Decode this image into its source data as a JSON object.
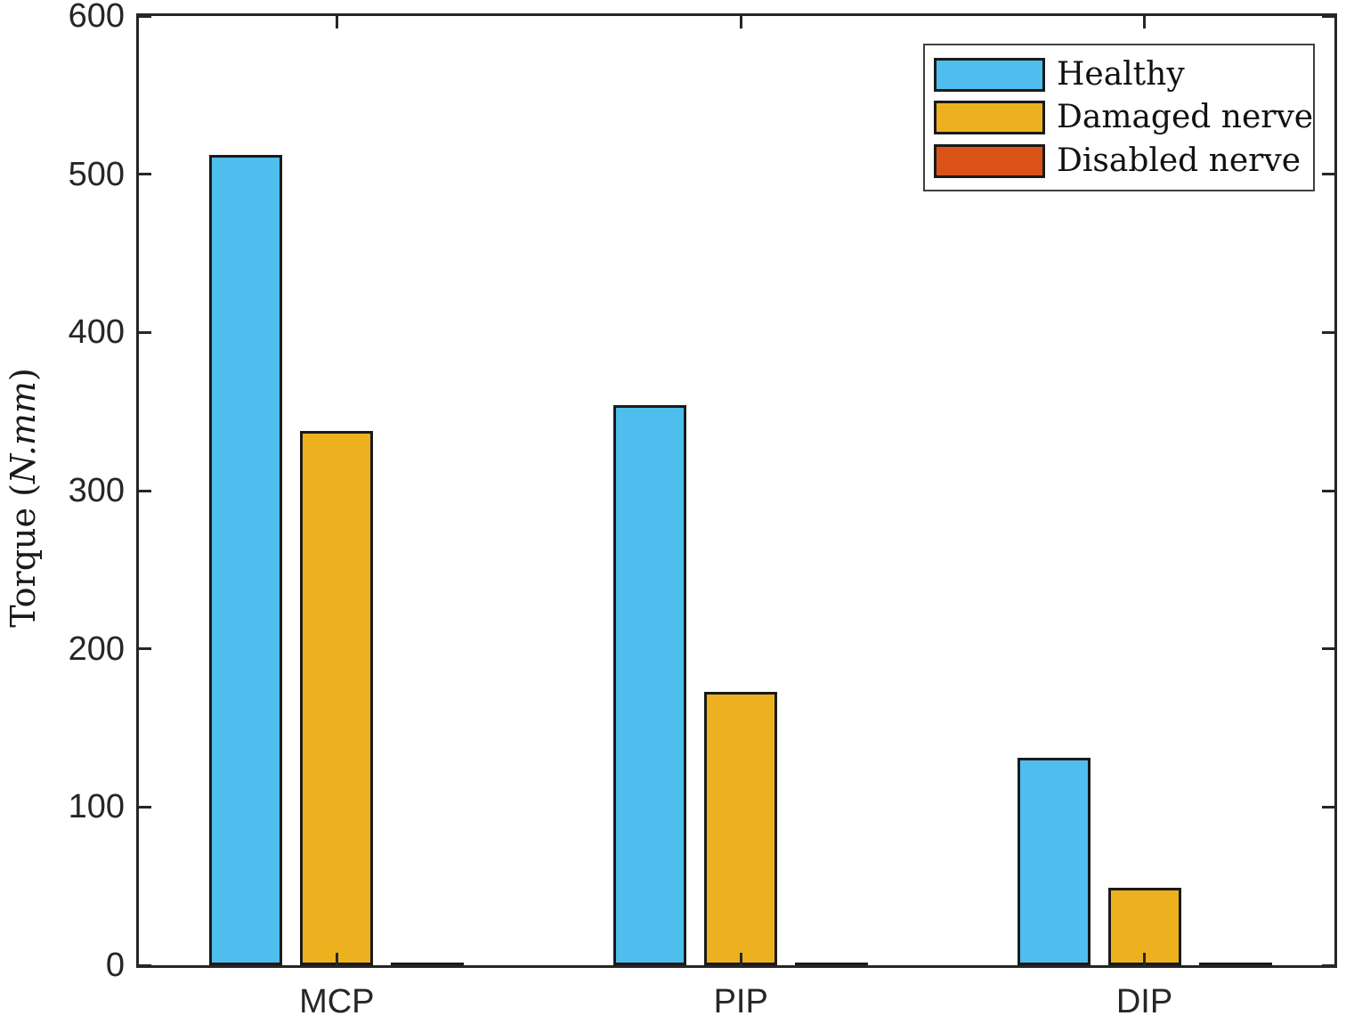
{
  "chart_data": {
    "type": "bar",
    "title": "",
    "categories": [
      "MCP",
      "PIP",
      "DIP"
    ],
    "series": [
      {
        "name": "Healthy",
        "color": "#4DBEEE",
        "values": [
          512,
          354,
          131
        ]
      },
      {
        "name": "Damaged nerve",
        "color": "#EDB120",
        "values": [
          338,
          173,
          49
        ]
      },
      {
        "name": "Disabled nerve",
        "color": "#D95319",
        "values": [
          1,
          1,
          1
        ]
      }
    ],
    "ylabel_prefix": "Torque (",
    "ylabel_math": "N.mm",
    "ylabel_suffix": ")",
    "ylim": [
      0,
      600
    ],
    "ytick_step": 100,
    "ytick_labels": [
      "0",
      "100",
      "200",
      "300",
      "400",
      "500",
      "600"
    ],
    "grid": false,
    "legend_position": "top-right",
    "bar_edge_color": "#1a1a1a",
    "axis_color": "#262626"
  }
}
